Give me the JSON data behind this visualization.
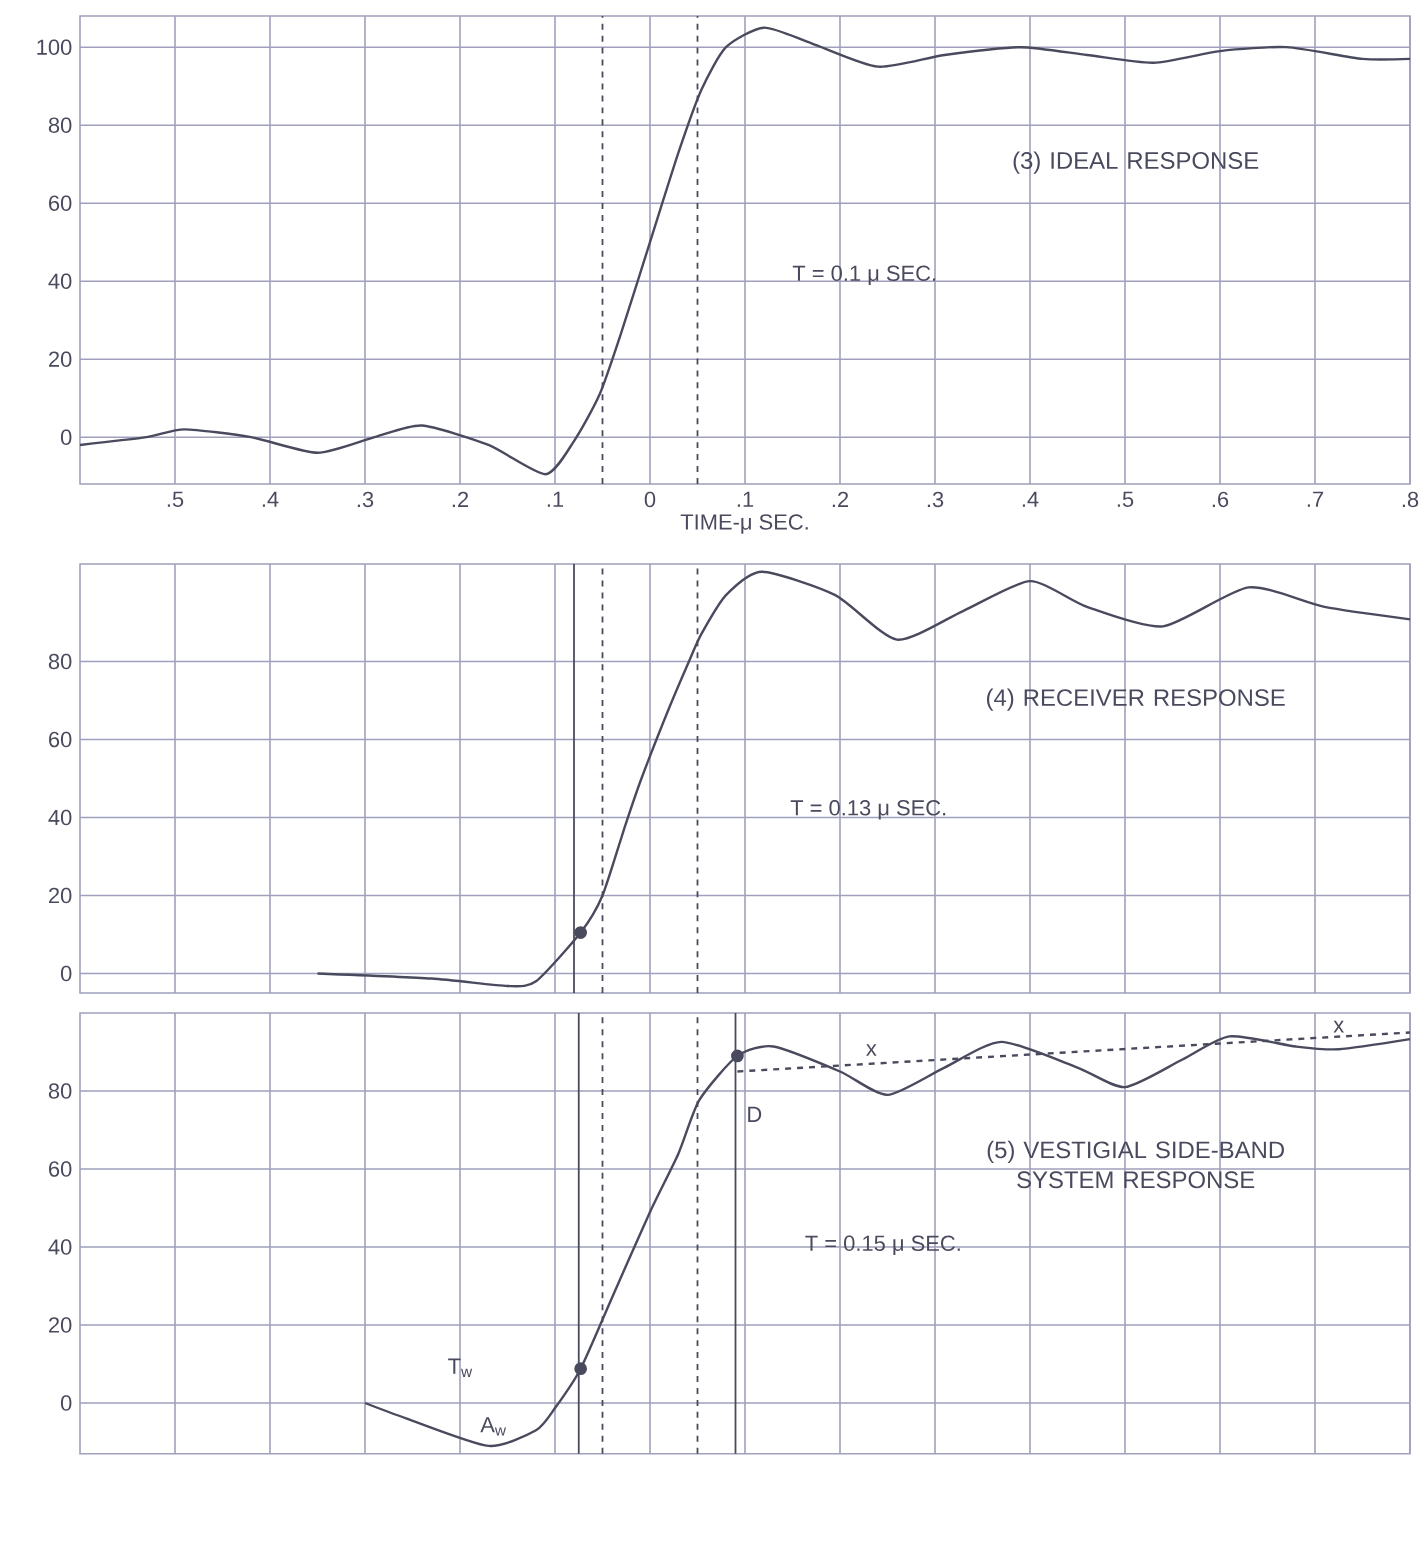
{
  "chart_data": [
    {
      "type": "line",
      "title": "(3) IDEAL RESPONSE",
      "xlabel": "TIME-μ SEC.",
      "xlim": [
        -0.6,
        0.8
      ],
      "ylim": [
        -12,
        108
      ],
      "xticks": [
        {
          "value": -0.5,
          "label": ".5"
        },
        {
          "value": -0.4,
          "label": ".4"
        },
        {
          "value": -0.3,
          "label": ".3"
        },
        {
          "value": -0.2,
          "label": ".2"
        },
        {
          "value": -0.1,
          "label": ".1"
        },
        0,
        {
          "value": 0.1,
          "label": ".1"
        },
        {
          "value": 0.2,
          "label": ".2"
        },
        {
          "value": 0.3,
          "label": ".3"
        },
        {
          "value": 0.4,
          "label": ".4"
        },
        {
          "value": 0.5,
          "label": ".5"
        },
        {
          "value": 0.6,
          "label": ".6"
        },
        {
          "value": 0.7,
          "label": ".7"
        },
        {
          "value": 0.8,
          "label": ".8"
        }
      ],
      "yticks": [
        0,
        20,
        40,
        60,
        80,
        100
      ],
      "grid": true,
      "series": [
        {
          "color": "#4a4a5e",
          "x": [
            -0.6,
            -0.53,
            -0.49,
            -0.42,
            -0.35,
            -0.29,
            -0.24,
            -0.17,
            -0.11,
            -0.08,
            -0.053,
            -0.03,
            0,
            0.03,
            0.054,
            0.08,
            0.12,
            0.17,
            0.24,
            0.31,
            0.39,
            0.46,
            0.53,
            0.6,
            0.67,
            0.75,
            0.8
          ],
          "values": [
            -2,
            0,
            2,
            0,
            -4,
            0,
            3,
            -2,
            -9.5,
            -1,
            11,
            27,
            50,
            73,
            89,
            100,
            105,
            101,
            95,
            98,
            100,
            98,
            96,
            99,
            100,
            97,
            97
          ]
        }
      ],
      "ref_lines": [
        {
          "axis": "x",
          "value": -0.05,
          "color": "#4a4a5e",
          "line_style": "dashed"
        },
        {
          "axis": "x",
          "value": 0.05,
          "color": "#4a4a5e",
          "line_style": "dashed"
        }
      ],
      "annotations": [
        "T = 0.1 μ SEC."
      ]
    },
    {
      "type": "line",
      "title": "(4) RECEIVER RESPONSE",
      "xlim": [
        -0.6,
        0.8
      ],
      "ylim": [
        -5,
        105
      ],
      "xticks": [
        -0.5,
        -0.4,
        -0.3,
        -0.2,
        -0.1,
        0,
        0.1,
        0.2,
        0.3,
        0.4,
        0.5,
        0.6,
        0.7,
        0.8
      ],
      "yticks": [
        0,
        20,
        40,
        60,
        80
      ],
      "grid": true,
      "tick_labels": "y",
      "series": [
        {
          "color": "#4a4a5e",
          "x": [
            -0.35,
            -0.23,
            -0.15,
            -0.12,
            -0.073,
            -0.05,
            -0.026,
            -0.009,
            0.02,
            0.041,
            0.054,
            0.08,
            0.118,
            0.195,
            0.26,
            0.33,
            0.4,
            0.46,
            0.54,
            0.63,
            0.71,
            0.8
          ],
          "values": [
            0,
            -1.3,
            -3.2,
            -2,
            10.5,
            20,
            38,
            50,
            68,
            80,
            87,
            97,
            103,
            97,
            85.6,
            93,
            100.6,
            94,
            89,
            99,
            94,
            90.8
          ]
        },
        {
          "type": "scatter",
          "marker": "circle",
          "color": "#4a4a5e",
          "x": [
            -0.073
          ],
          "values": [
            10.5
          ]
        }
      ],
      "ref_lines": [
        {
          "axis": "x",
          "value": -0.08,
          "color": "#4a4a5e",
          "line_style": "solid"
        },
        {
          "axis": "x",
          "value": -0.05,
          "color": "#4a4a5e",
          "line_style": "dashed"
        },
        {
          "axis": "x",
          "value": 0.05,
          "color": "#4a4a5e",
          "line_style": "dashed"
        }
      ],
      "annotations": [
        "T = 0.13 μ SEC."
      ]
    },
    {
      "type": "line",
      "title": "(5) VESTIGIAL SIDE-BAND SYSTEM RESPONSE",
      "xlim": [
        -0.6,
        0.8
      ],
      "ylim": [
        -13,
        100
      ],
      "xticks": [
        -0.5,
        -0.4,
        -0.3,
        -0.2,
        -0.1,
        0,
        0.1,
        0.2,
        0.3,
        0.4,
        0.5,
        0.6,
        0.7,
        0.8
      ],
      "yticks": [
        0,
        20,
        40,
        60,
        80
      ],
      "grid": true,
      "tick_labels": "y",
      "series": [
        {
          "color": "#4a4a5e",
          "x": [
            -0.3,
            -0.256,
            -0.17,
            -0.12,
            -0.1,
            -0.073,
            -0.04,
            0,
            0.03,
            0.052,
            0.092,
            0.13,
            0.2,
            0.25,
            0.31,
            0.37,
            0.45,
            0.5,
            0.56,
            0.61,
            0.68,
            0.725,
            0.8
          ],
          "values": [
            0,
            -4,
            -11,
            -7,
            -1.3,
            8.8,
            27,
            49,
            64,
            77.7,
            89,
            91.4,
            85,
            79,
            86,
            92.6,
            86,
            81,
            88,
            94,
            91.4,
            90.7,
            93.3
          ]
        },
        {
          "type": "scatter",
          "marker": "circle",
          "color": "#4a4a5e",
          "x": [
            -0.073,
            0.092
          ],
          "values": [
            8.8,
            89
          ]
        },
        {
          "type": "line",
          "line_style": "dashed",
          "color": "#4a4a5e",
          "x": [
            0.092,
            0.8
          ],
          "values": [
            85,
            95
          ]
        }
      ],
      "ref_lines": [
        {
          "axis": "x",
          "value": -0.075,
          "color": "#4a4a5e",
          "line_style": "solid"
        },
        {
          "axis": "x",
          "value": -0.05,
          "color": "#4a4a5e",
          "line_style": "dashed"
        },
        {
          "axis": "x",
          "value": 0.05,
          "color": "#4a4a5e",
          "line_style": "dashed"
        },
        {
          "axis": "x",
          "value": 0.09,
          "color": "#4a4a5e",
          "line_style": "solid"
        }
      ],
      "annotations": [
        "T = 0.15 μ SEC.",
        "D",
        "T$_{w}$",
        "A$_{w}$",
        "x",
        {
          "text": "x",
          "x": 0.725,
          "y": 96.5
        }
      ]
    }
  ]
}
